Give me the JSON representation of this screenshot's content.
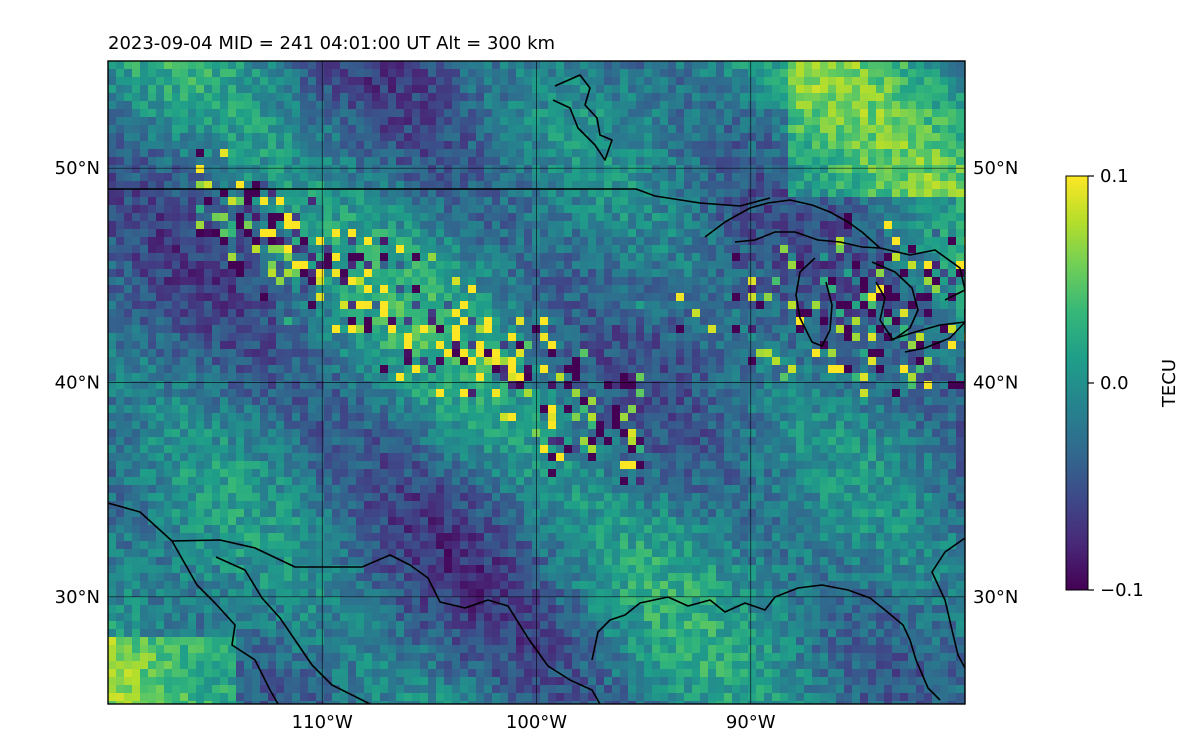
{
  "title": "2023-09-04  MID = 241    04:01:00  UT  Alt = 300 km",
  "map": {
    "projection": "plate-carree",
    "lon_range": [
      -120,
      -80
    ],
    "lat_range": [
      25,
      55
    ],
    "gridlines": true,
    "x_ticks": [
      {
        "value": -110,
        "label": "110°W"
      },
      {
        "value": -100,
        "label": "100°W"
      },
      {
        "value": -90,
        "label": "90°W"
      }
    ],
    "y_ticks": [
      {
        "value": 50,
        "label": "50°N"
      },
      {
        "value": 40,
        "label": "40°N"
      },
      {
        "value": 30,
        "label": "30°N"
      }
    ]
  },
  "colorbar": {
    "label": "TECU",
    "colormap": "viridis",
    "range": [
      -0.1,
      0.1
    ],
    "ticks": [
      {
        "value": 0.1,
        "label": "0.1"
      },
      {
        "value": 0.0,
        "label": "0.0"
      },
      {
        "value": -0.1,
        "label": "−0.1"
      }
    ]
  },
  "colormap_stops": [
    "#440154",
    "#482878",
    "#3e4989",
    "#31688e",
    "#26828e",
    "#1f9e89",
    "#35b779",
    "#6ece58",
    "#b5de2b",
    "#fde725"
  ],
  "coastline_color": "#000000",
  "background_value": -0.02
}
